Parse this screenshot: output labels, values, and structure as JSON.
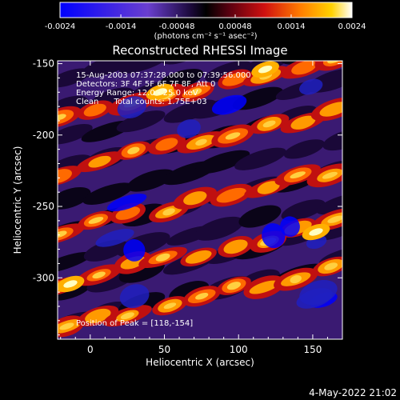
{
  "chart_data": {
    "type": "heatmap",
    "title": "Reconstructed RHESSI Image",
    "xlabel": "Heliocentric X (arcsec)",
    "ylabel": "Heliocentric Y (arcsec)",
    "xlim": [
      -22,
      170
    ],
    "ylim": [
      -343,
      -148
    ],
    "xticks": [
      0,
      50,
      100,
      150
    ],
    "yticks": [
      -150,
      -200,
      -250,
      -300
    ],
    "colorbar": {
      "ticks": [
        "-0.0024",
        "-0.0014",
        "-0.00048",
        "0.00048",
        "0.0014",
        "0.0024"
      ],
      "tick_values": [
        -0.0024,
        -0.0014,
        -0.00048,
        0.00048,
        0.0014,
        0.0024
      ],
      "range": [
        -0.0024,
        0.0024
      ],
      "unit_label": "(photons cm⁻² s⁻¹ asec⁻²)"
    },
    "annotations": [
      "15-Aug-2003 07:37:28.000 to 07:39:56.000",
      "Detectors: 3F 4F 5F 6F 7F 8F, Att 0",
      "Energy Range: 12.0 - 25.0 keV",
      "Clean      Total counts: 1.75E+03"
    ],
    "peak_label": "Position of Peak = [118,-154]",
    "peak_position": [
      118,
      -154
    ],
    "footer_date": "4-May-2022 21:02",
    "colors": {
      "background": "#000000",
      "text": "#ffffff"
    }
  }
}
